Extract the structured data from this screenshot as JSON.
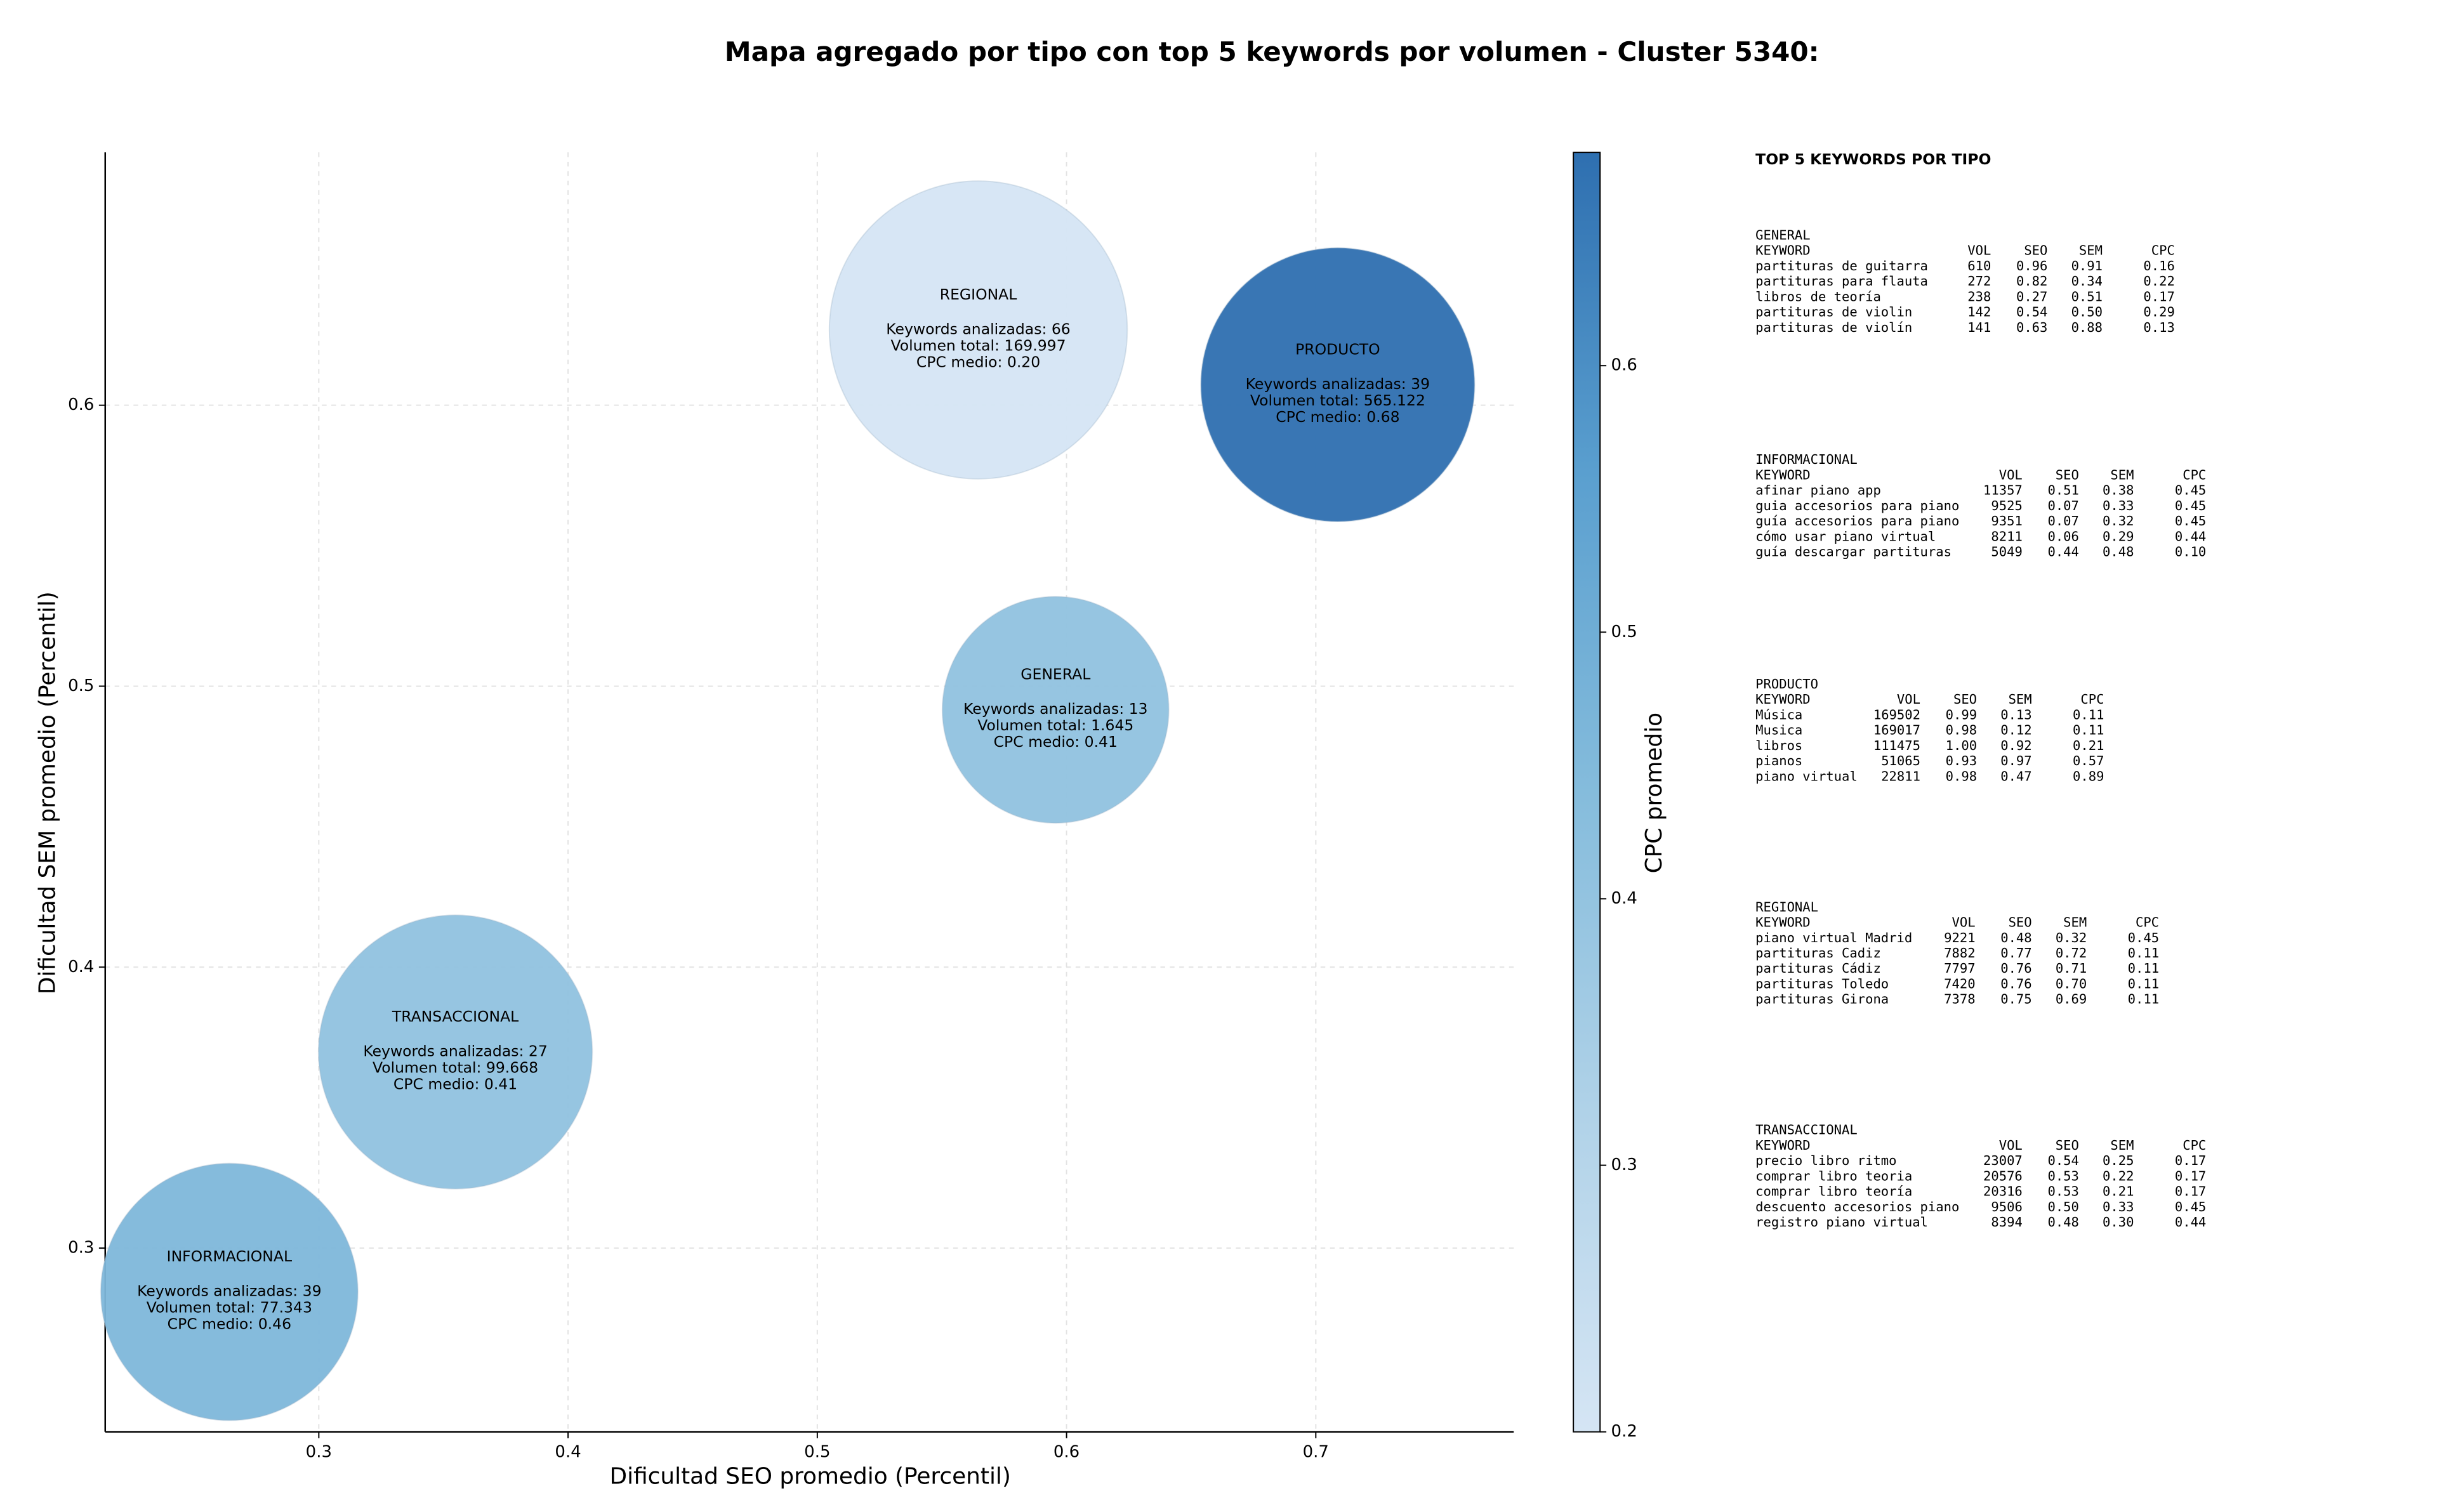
{
  "chart_data": {
    "type": "scatter",
    "title": "Mapa agregado por tipo con top 5 keywords por volumen - Cluster 5340:",
    "xlabel": "Dificultad SEO promedio (Percentil)",
    "ylabel": "Dificultad SEM promedio (Percentil)",
    "xlim": [
      0.2143,
      0.7794
    ],
    "ylim": [
      0.2346,
      0.69
    ],
    "xticks": [
      0.3,
      0.4,
      0.5,
      0.6,
      0.7
    ],
    "yticks": [
      0.3,
      0.4,
      0.5,
      0.6
    ],
    "grid": true,
    "x": [
      0.5646,
      0.7088,
      0.5956,
      0.3548,
      0.2641
    ],
    "y": [
      0.6268,
      0.6073,
      0.4916,
      0.3698,
      0.2844
    ],
    "sizes": [
      9000,
      7600,
      5200,
      7600,
      6700
    ],
    "color_values": [
      0.2,
      0.68,
      0.41,
      0.41,
      0.46
    ],
    "annotations": [
      [
        "REGIONAL",
        "Keywords analizadas: 66",
        "Volumen total: 169.997",
        "CPC medio: 0.20"
      ],
      [
        "PRODUCTO",
        "Keywords analizadas: 39",
        "Volumen total: 565.122",
        "CPC medio: 0.68"
      ],
      [
        "GENERAL",
        "Keywords analizadas: 13",
        "Volumen total: 1.645",
        "CPC medio: 0.41"
      ],
      [
        "TRANSACCIONAL",
        "Keywords analizadas: 27",
        "Volumen total: 99.668",
        "CPC medio: 0.41"
      ],
      [
        "INFORMACIONAL",
        "Keywords analizadas: 39",
        "Volumen total: 77.343",
        "CPC medio: 0.46"
      ]
    ],
    "colorbar": {
      "label": "CPC promedio",
      "lim": [
        0.2,
        0.68
      ],
      "ticks": [
        0.2,
        0.3,
        0.4,
        0.5,
        0.6
      ],
      "colormap": [
        "#d5e5f4",
        "#b0d2e8",
        "#85bcdc",
        "#5a9fcf",
        "#2e6fb0"
      ]
    }
  },
  "side_panel": {
    "title": "TOP 5 KEYWORDS POR TIPO",
    "tables": [
      {
        "name": "GENERAL",
        "header": [
          "KEYWORD",
          "VOL",
          "SEO",
          "SEM",
          "CPC"
        ],
        "rows": [
          [
            "partituras de guitarra",
            "610",
            "0.96",
            "0.91",
            "0.16"
          ],
          [
            "partituras para flauta",
            "272",
            "0.82",
            "0.34",
            "0.22"
          ],
          [
            "libros de teoría",
            "238",
            "0.27",
            "0.51",
            "0.17"
          ],
          [
            "partituras de violin",
            "142",
            "0.54",
            "0.50",
            "0.29"
          ],
          [
            "partituras de violín",
            "141",
            "0.63",
            "0.88",
            "0.13"
          ]
        ]
      },
      {
        "name": "INFORMACIONAL",
        "header": [
          "KEYWORD",
          "VOL",
          "SEO",
          "SEM",
          "CPC"
        ],
        "rows": [
          [
            "afinar piano app",
            "11357",
            "0.51",
            "0.38",
            "0.45"
          ],
          [
            "guia accesorios para piano",
            "9525",
            "0.07",
            "0.33",
            "0.45"
          ],
          [
            "guía accesorios para piano",
            "9351",
            "0.07",
            "0.32",
            "0.45"
          ],
          [
            "cómo usar piano virtual",
            "8211",
            "0.06",
            "0.29",
            "0.44"
          ],
          [
            "guía descargar partituras",
            "5049",
            "0.44",
            "0.48",
            "0.10"
          ]
        ]
      },
      {
        "name": "PRODUCTO",
        "header": [
          "KEYWORD",
          "VOL",
          "SEO",
          "SEM",
          "CPC"
        ],
        "rows": [
          [
            "Música",
            "169502",
            "0.99",
            "0.13",
            "0.11"
          ],
          [
            "Musica",
            "169017",
            "0.98",
            "0.12",
            "0.11"
          ],
          [
            "libros",
            "111475",
            "1.00",
            "0.92",
            "0.21"
          ],
          [
            "pianos",
            "51065",
            "0.93",
            "0.97",
            "0.57"
          ],
          [
            "piano virtual",
            "22811",
            "0.98",
            "0.47",
            "0.89"
          ]
        ]
      },
      {
        "name": "REGIONAL",
        "header": [
          "KEYWORD",
          "VOL",
          "SEO",
          "SEM",
          "CPC"
        ],
        "rows": [
          [
            "piano virtual Madrid",
            "9221",
            "0.48",
            "0.32",
            "0.45"
          ],
          [
            "partituras Cadiz",
            "7882",
            "0.77",
            "0.72",
            "0.11"
          ],
          [
            "partituras Cádiz",
            "7797",
            "0.76",
            "0.71",
            "0.11"
          ],
          [
            "partituras Toledo",
            "7420",
            "0.76",
            "0.70",
            "0.11"
          ],
          [
            "partituras Girona",
            "7378",
            "0.75",
            "0.69",
            "0.11"
          ]
        ]
      },
      {
        "name": "TRANSACCIONAL",
        "header": [
          "KEYWORD",
          "VOL",
          "SEO",
          "SEM",
          "CPC"
        ],
        "rows": [
          [
            "precio libro ritmo",
            "23007",
            "0.54",
            "0.25",
            "0.17"
          ],
          [
            "comprar libro teoria",
            "20576",
            "0.53",
            "0.22",
            "0.17"
          ],
          [
            "comprar libro teoría",
            "20316",
            "0.53",
            "0.21",
            "0.17"
          ],
          [
            "descuento accesorios piano",
            "9506",
            "0.50",
            "0.33",
            "0.45"
          ],
          [
            "registro piano virtual",
            "8394",
            "0.48",
            "0.30",
            "0.44"
          ]
        ]
      }
    ]
  }
}
